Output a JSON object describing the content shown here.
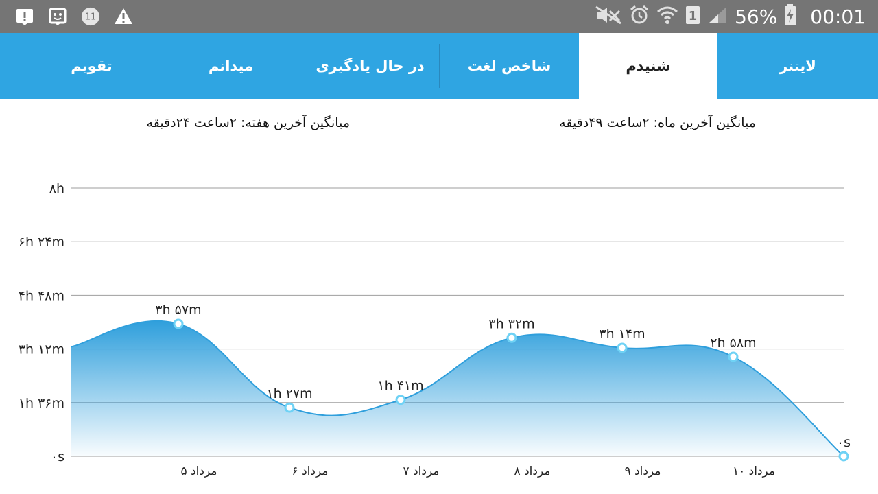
{
  "status_bar": {
    "battery": "56%",
    "time": "00:01",
    "sim_slot": "1",
    "notification_count": "11",
    "icons": [
      "download-alert-icon",
      "image-notification-icon",
      "notification-count-icon",
      "warning-icon",
      "mute-icon",
      "alarm-icon",
      "wifi-icon",
      "signal-icon",
      "battery-charging-icon"
    ]
  },
  "tabs": [
    {
      "label": "لایتنر",
      "active": false
    },
    {
      "label": "شنیدم",
      "active": true
    },
    {
      "label": "شاخص لغت",
      "active": false
    },
    {
      "label": "در حال یادگیری",
      "active": false
    },
    {
      "label": "میدانم",
      "active": false
    },
    {
      "label": "تقویم",
      "active": false
    }
  ],
  "averages": {
    "month": "میانگین آخرین ماه: ۲ساعت  ۴۹دقیقه",
    "week": "میانگین آخرین هفته: ۲ساعت  ۲۴دقیقه"
  },
  "colors": {
    "tab_bar": "#2fa5e2",
    "line": "#2f9fdc",
    "fill_top": "#2f9fdc",
    "point_fill": "#ffffff",
    "point_stroke": "#6fd2f5"
  },
  "chart_data": {
    "type": "area",
    "unit": "minutes",
    "ylim": [
      0,
      480
    ],
    "grid": true,
    "y_ticks": [
      {
        "value": 0,
        "label": "۰s"
      },
      {
        "value": 96,
        "label": "۱h ۳۶m"
      },
      {
        "value": 192,
        "label": "۳h ۱۲m"
      },
      {
        "value": 288,
        "label": "۴h ۴۸m"
      },
      {
        "value": 384,
        "label": "۶h ۲۴m"
      },
      {
        "value": 480,
        "label": "۸h"
      }
    ],
    "points": [
      {
        "x_label": "۵ مرداد",
        "value": 237,
        "label": "۳h ۵۷m"
      },
      {
        "x_label": "۶ مرداد",
        "value": 87,
        "label": "۱h ۲۷m"
      },
      {
        "x_label": "۷ مرداد",
        "value": 101,
        "label": "۱h ۴۱m"
      },
      {
        "x_label": "۸ مرداد",
        "value": 212,
        "label": "۳h ۳۲m"
      },
      {
        "x_label": "۹ مرداد",
        "value": 194,
        "label": "۳h ۱۴m"
      },
      {
        "x_label": "۱۰ مرداد",
        "value": 178,
        "label": "۲h ۵۸m"
      },
      {
        "x_label": "",
        "value": 0,
        "label": "۰s"
      }
    ]
  }
}
